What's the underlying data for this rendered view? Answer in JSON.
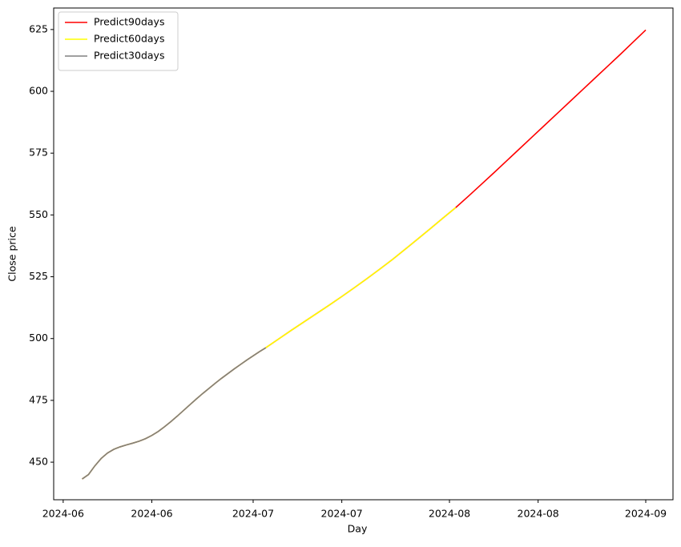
{
  "chart_data": {
    "type": "line",
    "x_label": "Day",
    "y_label": "Close price",
    "series": [
      {
        "name": "Predict90days",
        "color": "red",
        "x": [
          3,
          4,
          5,
          6,
          7,
          8,
          9,
          10,
          11,
          12,
          13,
          14,
          15,
          16,
          17,
          18,
          19,
          20,
          21,
          22,
          23,
          24,
          25,
          26,
          27,
          28,
          29,
          30,
          31,
          32,
          34,
          36,
          38,
          40,
          42,
          44,
          46,
          48,
          50,
          52,
          54,
          56,
          58,
          60,
          62,
          64,
          66,
          68,
          70,
          72,
          74,
          76,
          78,
          80,
          82,
          84,
          86,
          88,
          90,
          92
        ],
        "values": [
          443.2,
          445,
          448.5,
          451.5,
          453.7,
          455.2,
          456.2,
          457,
          457.7,
          458.5,
          459.5,
          460.8,
          462.4,
          464.3,
          466.4,
          468.6,
          470.9,
          473.2,
          475.5,
          477.7,
          479.8,
          481.9,
          483.9,
          485.8,
          487.7,
          489.5,
          491.3,
          493,
          494.7,
          496.3,
          499.8,
          503.3,
          506.7,
          510.1,
          513.5,
          517,
          520.6,
          524.3,
          528.1,
          532,
          536.1,
          540.3,
          544.5,
          548.8,
          553,
          557.6,
          562.3,
          567,
          571.8,
          576.6,
          581.4,
          586.2,
          591,
          595.8,
          600.6,
          605.4,
          610.2,
          615,
          619.9,
          624.8
        ]
      },
      {
        "name": "Predict60days",
        "color": "yellow",
        "x": [
          3,
          4,
          5,
          6,
          7,
          8,
          9,
          10,
          11,
          12,
          13,
          14,
          15,
          16,
          17,
          18,
          19,
          20,
          21,
          22,
          23,
          24,
          25,
          26,
          27,
          28,
          29,
          30,
          31,
          32,
          34,
          36,
          38,
          40,
          42,
          44,
          46,
          48,
          50,
          52,
          54,
          56,
          58,
          60,
          62
        ],
        "values": [
          443.2,
          445,
          448.5,
          451.5,
          453.7,
          455.2,
          456.2,
          457,
          457.7,
          458.5,
          459.5,
          460.8,
          462.4,
          464.3,
          466.4,
          468.6,
          470.9,
          473.2,
          475.5,
          477.7,
          479.8,
          481.9,
          483.9,
          485.8,
          487.7,
          489.5,
          491.3,
          493,
          494.7,
          496.3,
          499.8,
          503.3,
          506.7,
          510.1,
          513.5,
          517,
          520.6,
          524.3,
          528.1,
          532,
          536.1,
          540.3,
          544.5,
          548.8,
          553
        ]
      },
      {
        "name": "Predict30days",
        "color": "gray",
        "x": [
          3,
          4,
          5,
          6,
          7,
          8,
          9,
          10,
          11,
          12,
          13,
          14,
          15,
          16,
          17,
          18,
          19,
          20,
          21,
          22,
          23,
          24,
          25,
          26,
          27,
          28,
          29,
          30,
          31,
          32
        ],
        "values": [
          443.2,
          445,
          448.5,
          451.5,
          453.7,
          455.2,
          456.2,
          457,
          457.7,
          458.5,
          459.5,
          460.8,
          462.4,
          464.3,
          466.4,
          468.6,
          470.9,
          473.2,
          475.5,
          477.7,
          479.8,
          481.9,
          483.9,
          485.8,
          487.7,
          489.5,
          491.3,
          493,
          494.7,
          496.3
        ]
      }
    ],
    "xlim": [
      -1.5,
      96.3
    ],
    "xticks": [
      {
        "value": 0,
        "label": "2024-06"
      },
      {
        "value": 14,
        "label": "2024-06"
      },
      {
        "value": 30,
        "label": "2024-07"
      },
      {
        "value": 44,
        "label": "2024-07"
      },
      {
        "value": 61,
        "label": "2024-08"
      },
      {
        "value": 75,
        "label": "2024-08"
      },
      {
        "value": 92,
        "label": "2024-09"
      }
    ],
    "ylim": [
      434.8,
      633.7
    ],
    "yticks": [
      450,
      475,
      500,
      525,
      550,
      575,
      600,
      625
    ],
    "legend": "upper left"
  }
}
